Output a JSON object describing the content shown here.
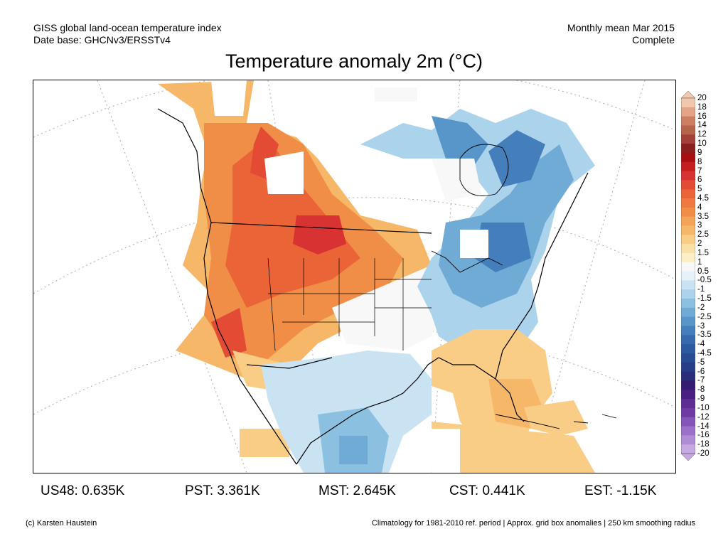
{
  "header": {
    "left_line1": "GISS global land-ocean temperature index",
    "left_line2": "Date base: GHCNv3/ERSSTv4",
    "right_line1": "Monthly mean Mar 2015",
    "right_line2": "Complete"
  },
  "title": "Temperature anomaly 2m (°C)",
  "colorbar": {
    "levels": [
      "20",
      "18",
      "16",
      "14",
      "12",
      "10",
      "9",
      "8",
      "7",
      "6",
      "5",
      "4.5",
      "4",
      "3.5",
      "3",
      "2.5",
      "2",
      "1.5",
      "1",
      "0.5",
      "-0.5",
      "-1",
      "-1.5",
      "-2",
      "-2.5",
      "-3",
      "-3.5",
      "-4",
      "-4.5",
      "-5",
      "-6",
      "-7",
      "-8",
      "-9",
      "-10",
      "-12",
      "-14",
      "-16",
      "-18",
      "-20"
    ],
    "colors": [
      "#f2c7ad",
      "#e3a586",
      "#cd8061",
      "#b6644a",
      "#a2403a",
      "#8a2020",
      "#a80f0f",
      "#c51e1e",
      "#d93232",
      "#e44b35",
      "#eb6438",
      "#ee7a41",
      "#f08e48",
      "#f4a458",
      "#f6b868",
      "#f9cd85",
      "#fbe0a6",
      "#fdeec6",
      "#f8f8f8",
      "#e6f1fa",
      "#c9e3f3",
      "#acd3ec",
      "#8cc0e1",
      "#6fabd5",
      "#5896c9",
      "#447fbb",
      "#3669ad",
      "#2c5a9f",
      "#284c94",
      "#263d88",
      "#2a2d7c",
      "#331c72",
      "#4a1f82",
      "#5e2d94",
      "#6f3aa4",
      "#8555b8",
      "#9a70c8",
      "#b08cd6",
      "#c6a8e3"
    ]
  },
  "stats": [
    {
      "label": "US48: 0.635K"
    },
    {
      "label": "PST: 3.361K"
    },
    {
      "label": "MST: 2.645K"
    },
    {
      "label": "CST: 0.441K"
    },
    {
      "label": "EST: -1.15K"
    }
  ],
  "footer": {
    "credit": "(c) Karsten Haustein",
    "note": "Climatology for 1981-2010 ref. period | Approx. grid box anomalies | 250 km smoothing radius"
  }
}
